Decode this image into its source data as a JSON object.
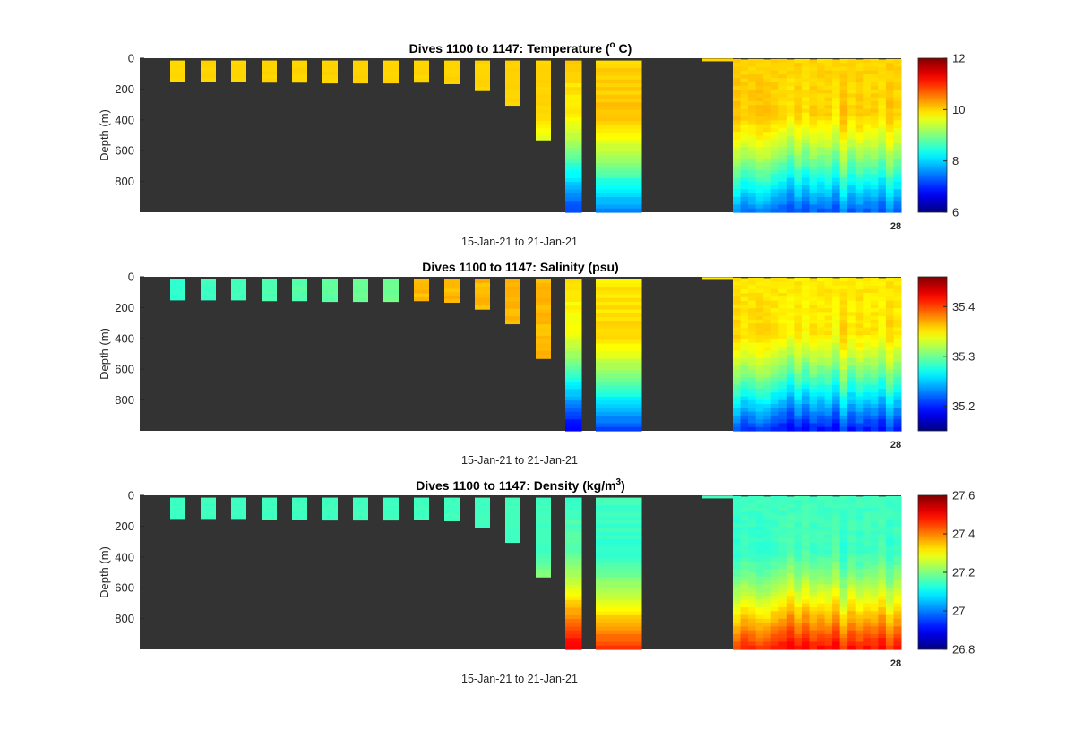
{
  "chart_data": [
    {
      "type": "heatmap",
      "title": "Dives 1100 to 1147: Temperature (",
      "title_sup": "o",
      "title_after": " C)",
      "ylabel": "Depth (m)",
      "xlabel": "15-Jan-21 to 21-Jan-21",
      "x_end_tick": "28",
      "y_ticks": [
        0,
        200,
        400,
        600,
        800
      ],
      "ylim": [
        0,
        1000
      ],
      "colorbar": {
        "min": 6,
        "max": 12,
        "ticks": [
          6,
          8,
          10,
          12
        ],
        "colormap": "jet"
      },
      "background_color": "#333333",
      "surface_value": 10.0,
      "deep_value": 7.2
    },
    {
      "type": "heatmap",
      "title": "Dives 1100 to 1147: Salinity (psu)",
      "title_sup": "",
      "title_after": "",
      "ylabel": "Depth (m)",
      "xlabel": "15-Jan-21 to 21-Jan-21",
      "x_end_tick": "28",
      "y_ticks": [
        0,
        200,
        400,
        600,
        800
      ],
      "ylim": [
        0,
        1000
      ],
      "colorbar": {
        "min": 35.15,
        "max": 35.46,
        "ticks": [
          35.2,
          35.3,
          35.4
        ],
        "colormap": "jet"
      },
      "background_color": "#333333",
      "surface_value": 35.35,
      "deep_value": 35.19
    },
    {
      "type": "heatmap",
      "title": "Dives 1100 to 1147: Density (kg/m",
      "title_sup": "3",
      "title_after": ")",
      "ylabel": "Depth (m)",
      "xlabel": "15-Jan-21 to 21-Jan-21",
      "x_end_tick": "28",
      "y_ticks": [
        0,
        200,
        400,
        600,
        800
      ],
      "ylim": [
        0,
        1000
      ],
      "colorbar": {
        "min": 26.8,
        "max": 27.6,
        "ticks": [
          26.8,
          27,
          27.2,
          27.4,
          27.6
        ],
        "colormap": "jet"
      },
      "background_color": "#333333",
      "surface_value": 27.15,
      "deep_value": 27.5
    }
  ],
  "dives": {
    "early_max_depths": [
      150,
      150,
      150,
      155,
      155,
      160,
      160,
      160,
      155,
      165,
      210,
      305,
      530
    ],
    "surface_offset": 15
  }
}
